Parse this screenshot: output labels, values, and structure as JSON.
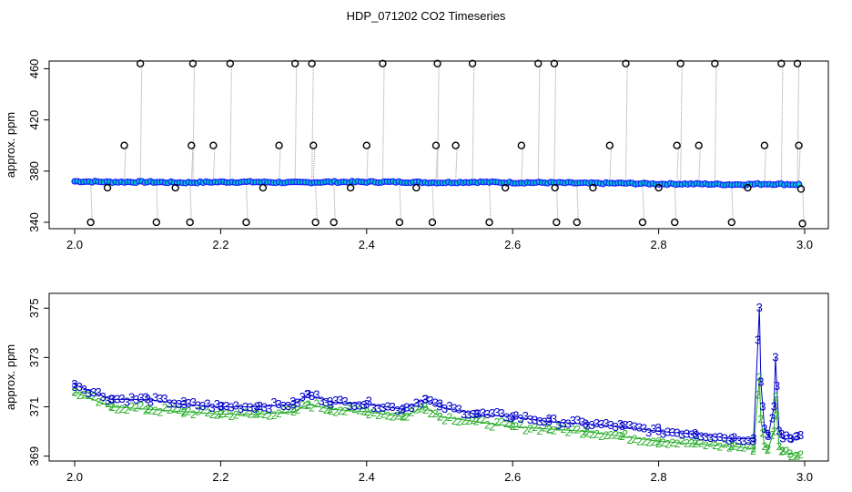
{
  "figure": {
    "title": "HDP_071202  CO2 Timeseries"
  },
  "colors": {
    "raw_trace": "#9a9a9a",
    "outlier_marker": "#000000",
    "baseline_marker": "#1a1aff",
    "baseline_fill": "#00cccc",
    "series_3": "#0000cc",
    "series_2": "#22aa22"
  },
  "chart_data": [
    {
      "type": "scatter",
      "panel": "top",
      "xlabel": "",
      "ylabel": "approx. ppm",
      "xlim": [
        2.0,
        3.0
      ],
      "ylim": [
        335,
        466
      ],
      "x_ticks": [
        "2.0",
        "2.2",
        "2.4",
        "2.6",
        "2.8",
        "3.0"
      ],
      "y_ticks": [
        "340",
        "380",
        "420",
        "460"
      ],
      "baseline": {
        "x": [
          2.0,
          2.05,
          2.1,
          2.15,
          2.2,
          2.25,
          2.3,
          2.35,
          2.4,
          2.45,
          2.5,
          2.55,
          2.6,
          2.65,
          2.7,
          2.75,
          2.8,
          2.85,
          2.9,
          2.95,
          2.99
        ],
        "y": [
          372,
          371.5,
          371.5,
          371,
          371.5,
          371.5,
          371,
          371.5,
          371.5,
          371.5,
          371,
          371.5,
          371,
          371,
          370.5,
          370.5,
          370,
          370,
          369.5,
          370,
          369.5
        ]
      },
      "outliers": {
        "x": [
          2.022,
          2.045,
          2.068,
          2.09,
          2.112,
          2.138,
          2.158,
          2.16,
          2.162,
          2.19,
          2.213,
          2.235,
          2.258,
          2.28,
          2.302,
          2.325,
          2.327,
          2.33,
          2.355,
          2.378,
          2.4,
          2.422,
          2.445,
          2.468,
          2.49,
          2.495,
          2.497,
          2.522,
          2.545,
          2.568,
          2.59,
          2.612,
          2.635,
          2.657,
          2.658,
          2.66,
          2.688,
          2.71,
          2.733,
          2.755,
          2.778,
          2.8,
          2.822,
          2.825,
          2.83,
          2.855,
          2.877,
          2.9,
          2.922,
          2.945,
          2.968,
          2.99,
          2.992,
          2.995,
          2.997
        ],
        "y": [
          340,
          367,
          400,
          464,
          340,
          367,
          340,
          400,
          464,
          400,
          464,
          340,
          367,
          400,
          464,
          464,
          400,
          340,
          340,
          367,
          400,
          464,
          340,
          367,
          340,
          400,
          464,
          400,
          464,
          340,
          367,
          400,
          464,
          464,
          367,
          340,
          340,
          367,
          400,
          464,
          340,
          367,
          340,
          400,
          464,
          400,
          464,
          340,
          367,
          400,
          464,
          464,
          400,
          366,
          339
        ]
      }
    },
    {
      "type": "scatter",
      "panel": "bottom",
      "xlabel": "",
      "ylabel": "approx. ppm",
      "xlim": [
        2.0,
        3.0
      ],
      "ylim": [
        368.8,
        375.6
      ],
      "x_ticks": [
        "2.0",
        "2.2",
        "2.4",
        "2.6",
        "2.8",
        "3.0"
      ],
      "y_ticks": [
        "369",
        "371",
        "373",
        "375"
      ],
      "series": [
        {
          "name": "3",
          "x": [
            2.0,
            2.05,
            2.1,
            2.15,
            2.2,
            2.25,
            2.3,
            2.32,
            2.35,
            2.4,
            2.45,
            2.48,
            2.5,
            2.55,
            2.6,
            2.65,
            2.7,
            2.75,
            2.8,
            2.85,
            2.9,
            2.93,
            2.938,
            2.94,
            2.945,
            2.95,
            2.958,
            2.96,
            2.965,
            2.97,
            2.98,
            2.99
          ],
          "values": [
            371.9,
            371.3,
            371.3,
            371.1,
            371.0,
            371.0,
            371.1,
            371.5,
            371.2,
            371.1,
            370.9,
            371.3,
            371.0,
            370.7,
            370.6,
            370.4,
            370.3,
            370.2,
            370.0,
            369.9,
            369.7,
            369.7,
            375.0,
            372.0,
            370.1,
            369.8,
            371.0,
            373.0,
            370.0,
            369.7,
            369.7,
            369.8
          ]
        },
        {
          "name": "2",
          "x": [
            2.0,
            2.05,
            2.1,
            2.15,
            2.2,
            2.25,
            2.3,
            2.32,
            2.35,
            2.4,
            2.45,
            2.48,
            2.5,
            2.55,
            2.6,
            2.65,
            2.7,
            2.75,
            2.8,
            2.85,
            2.9,
            2.93,
            2.938,
            2.94,
            2.945,
            2.95,
            2.958,
            2.96,
            2.965,
            2.97,
            2.98,
            2.99
          ],
          "values": [
            371.6,
            371.0,
            370.9,
            370.8,
            370.7,
            370.7,
            370.8,
            371.1,
            370.9,
            370.8,
            370.6,
            371.0,
            370.6,
            370.4,
            370.2,
            370.1,
            370.0,
            369.8,
            369.6,
            369.5,
            369.4,
            369.3,
            372.2,
            370.5,
            369.4,
            369.3,
            370.0,
            371.4,
            369.4,
            369.2,
            369.1,
            369.0
          ]
        }
      ]
    }
  ]
}
